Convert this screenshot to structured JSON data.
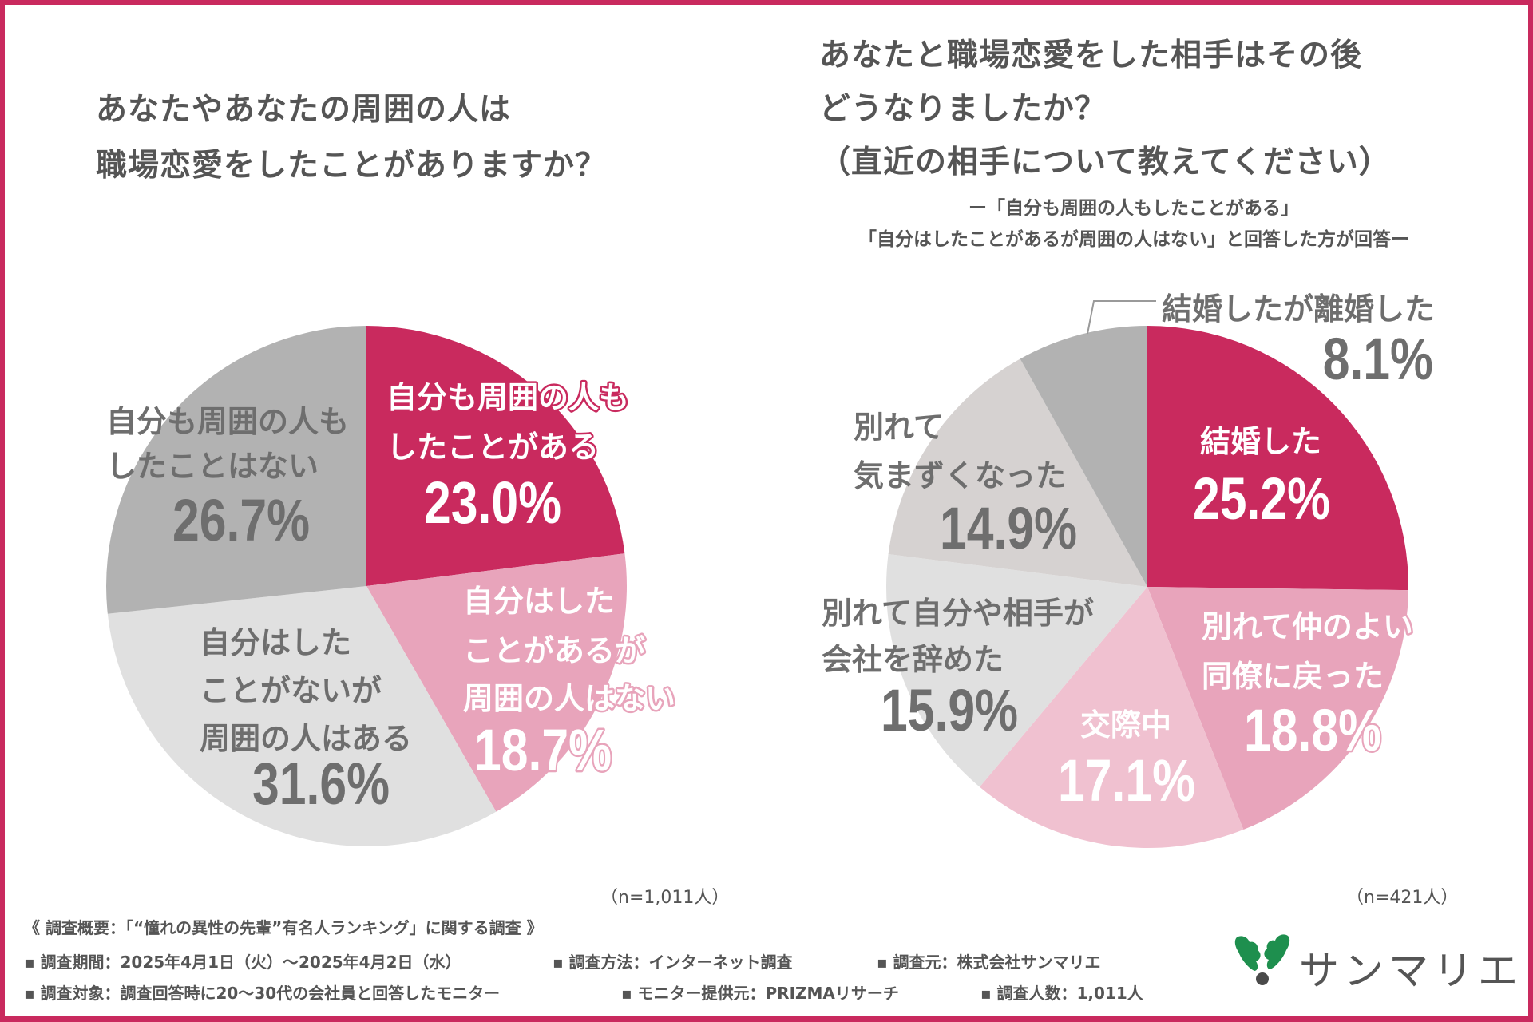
{
  "left": {
    "title_lines": [
      "あなたやあなたの周囲の人は",
      "職場恋愛をしたことがありますか？"
    ],
    "n_note": "（n=1,011人）"
  },
  "right": {
    "title_lines": [
      "あなたと職場恋愛をした相手はその後",
      "どうなりましたか？",
      "（直近の相手について教えてください）"
    ],
    "subtitle_lines": [
      "ー「自分も周囲の人もしたことがある」",
      "「自分はしたことがあるが周囲の人はない」と回答した方が回答ー"
    ],
    "n_note": "（n=421人）"
  },
  "footer": {
    "overview": "《 調査概要：「“憧れの異性の先輩”有名人ランキング」に関する調査 》",
    "row1": [
      "▪ 調査期間：2025年4月1日（火）～2025年4月2日（水）",
      "▪ 調査方法：インターネット調査",
      "▪ 調査元：株式会社サンマリエ"
    ],
    "row2": [
      "▪ 調査対象：調査回答時に20～30代の会社員と回答したモニター",
      "▪ モニター提供元：PRIZMAリサーチ",
      "▪ 調査人数：1,011人"
    ]
  },
  "logo": {
    "text": "サンマリエ",
    "leaf_color": "#1e8f4e",
    "dot_color": "#4a4a4a"
  },
  "colors": {
    "brand": "#c92a5e",
    "text": "#555555",
    "label_gray": "#6e6e6e"
  },
  "chart_data": [
    {
      "type": "pie",
      "title": "あなたやあなたの周囲の人は職場恋愛をしたことがありますか？",
      "n": "n=1,011人",
      "start": "top",
      "direction": "clockwise",
      "slices": [
        {
          "label_lines": [
            "自分も周囲の人も",
            "したことがある"
          ],
          "value": 23.0,
          "display": "23.0%",
          "color": "#c92a5e",
          "text_color": "#ffffff",
          "outline": "#c92a5e"
        },
        {
          "label_lines": [
            "自分はした",
            "ことがあるが",
            "周囲の人はない"
          ],
          "value": 18.7,
          "display": "18.7%",
          "color": "#e8a4bb",
          "text_color": "#ffffff",
          "outline": "#e8a4bb"
        },
        {
          "label_lines": [
            "自分はした",
            "ことがないが",
            "周囲の人はある"
          ],
          "value": 31.6,
          "display": "31.6%",
          "color": "#e0e0e0",
          "text_color": "#6e6e6e",
          "outline": null
        },
        {
          "label_lines": [
            "自分も周囲の人も",
            "したことはない"
          ],
          "value": 26.7,
          "display": "26.7%",
          "color": "#b2b2b2",
          "text_color": "#6e6e6e",
          "outline": null
        }
      ]
    },
    {
      "type": "pie",
      "title": "あなたと職場恋愛をした相手はその後どうなりましたか？（直近の相手について教えてください）",
      "n": "n=421人",
      "start": "top",
      "direction": "clockwise",
      "slices": [
        {
          "label_lines": [
            "結婚した"
          ],
          "value": 25.2,
          "display": "25.2%",
          "color": "#c92a5e",
          "text_color": "#ffffff",
          "outline": null
        },
        {
          "label_lines": [
            "別れて仲のよい",
            "同僚に戻った"
          ],
          "value": 18.8,
          "display": "18.8%",
          "color": "#e8a4bb",
          "text_color": "#ffffff",
          "outline": "#e8a4bb"
        },
        {
          "label_lines": [
            "交際中"
          ],
          "value": 17.1,
          "display": "17.1%",
          "color": "#f0c1d0",
          "text_color": "#ffffff",
          "outline": null
        },
        {
          "label_lines": [
            "別れて自分や相手が",
            "会社を辞めた"
          ],
          "value": 15.9,
          "display": "15.9%",
          "color": "#e0e0e0",
          "text_color": "#6e6e6e",
          "outline": null
        },
        {
          "label_lines": [
            "別れて",
            "気まずくなった"
          ],
          "value": 14.9,
          "display": "14.9%",
          "color": "#d6d2d1",
          "text_color": "#6e6e6e",
          "outline": null
        },
        {
          "label_lines": [
            "結婚したが離婚した"
          ],
          "value": 8.1,
          "display": "8.1%",
          "color": "#b2b2b2",
          "text_color": "#6e6e6e",
          "outline": null,
          "leader_line": true
        }
      ]
    }
  ]
}
